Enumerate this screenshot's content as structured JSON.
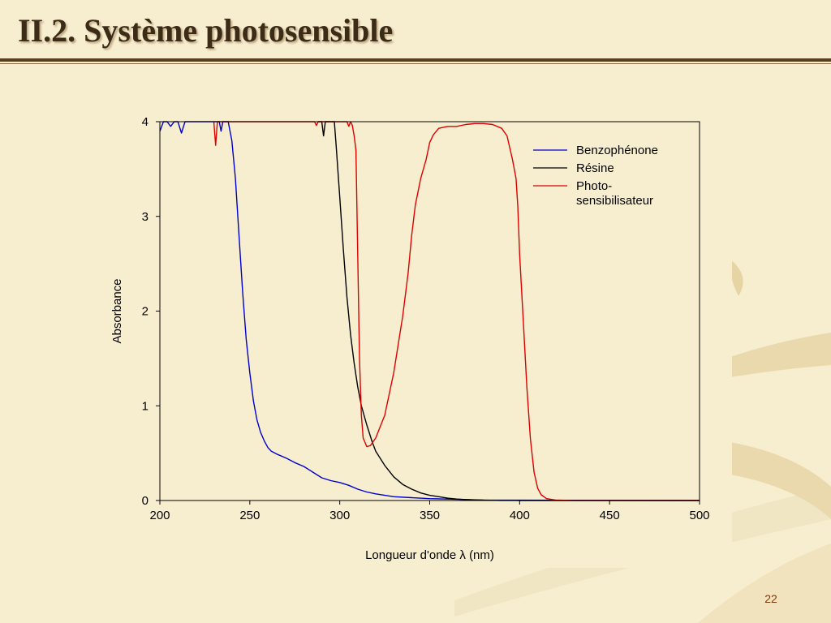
{
  "slide": {
    "title": "II.2. Système photosensible",
    "page_number": "22"
  },
  "colors": {
    "background": "#f7eed0",
    "title": "#3b2b17",
    "rule": "#5a3f1f",
    "page_number": "#7a3b10"
  },
  "chart_data": {
    "type": "line",
    "title": "",
    "xlabel": "Longueur d'onde λ (nm)",
    "ylabel": "Absorbance",
    "xlim": [
      200,
      500
    ],
    "ylim": [
      0,
      4
    ],
    "x_ticks": [
      200,
      250,
      300,
      350,
      400,
      450,
      500
    ],
    "y_ticks": [
      0,
      1,
      2,
      3,
      4
    ],
    "x_tick_labels": [
      "200",
      "250",
      "300",
      "350",
      "400",
      "450",
      "500"
    ],
    "y_tick_labels": [
      "0",
      "1",
      "2",
      "3",
      "4"
    ],
    "grid": false,
    "legend_position": "top-right",
    "legend_labels": [
      "Benzophénone",
      "Résine",
      "Photo-",
      "sensibilisateur"
    ],
    "series": [
      {
        "name": "Benzophénone",
        "color": "#0000cc",
        "points": [
          [
            200,
            3.9
          ],
          [
            202,
            4
          ],
          [
            204,
            4
          ],
          [
            206,
            3.95
          ],
          [
            208,
            4
          ],
          [
            210,
            4
          ],
          [
            212,
            3.88
          ],
          [
            214,
            4
          ],
          [
            216,
            4
          ],
          [
            220,
            4
          ],
          [
            225,
            4
          ],
          [
            230,
            4
          ],
          [
            233,
            4
          ],
          [
            234,
            3.9
          ],
          [
            235,
            4
          ],
          [
            236,
            4
          ],
          [
            238,
            4
          ],
          [
            240,
            3.8
          ],
          [
            242,
            3.4
          ],
          [
            244,
            2.8
          ],
          [
            246,
            2.2
          ],
          [
            248,
            1.7
          ],
          [
            250,
            1.35
          ],
          [
            252,
            1.05
          ],
          [
            254,
            0.85
          ],
          [
            256,
            0.72
          ],
          [
            258,
            0.63
          ],
          [
            260,
            0.56
          ],
          [
            262,
            0.52
          ],
          [
            265,
            0.49
          ],
          [
            270,
            0.45
          ],
          [
            275,
            0.4
          ],
          [
            280,
            0.36
          ],
          [
            285,
            0.3
          ],
          [
            290,
            0.24
          ],
          [
            295,
            0.21
          ],
          [
            300,
            0.19
          ],
          [
            305,
            0.16
          ],
          [
            310,
            0.12
          ],
          [
            315,
            0.09
          ],
          [
            320,
            0.07
          ],
          [
            330,
            0.04
          ],
          [
            340,
            0.03
          ],
          [
            350,
            0.02
          ],
          [
            360,
            0.015
          ],
          [
            370,
            0.01
          ],
          [
            380,
            0.005
          ],
          [
            400,
            0.003
          ],
          [
            450,
            0.002
          ],
          [
            500,
            0
          ]
        ]
      },
      {
        "name": "Résine",
        "color": "#000000",
        "points": [
          [
            288,
            4
          ],
          [
            290,
            4
          ],
          [
            291,
            3.85
          ],
          [
            292,
            4
          ],
          [
            295,
            4
          ],
          [
            297,
            4
          ],
          [
            298,
            3.75
          ],
          [
            300,
            3.2
          ],
          [
            302,
            2.65
          ],
          [
            304,
            2.15
          ],
          [
            306,
            1.75
          ],
          [
            308,
            1.45
          ],
          [
            310,
            1.2
          ],
          [
            312,
            1.0
          ],
          [
            315,
            0.8
          ],
          [
            318,
            0.62
          ],
          [
            320,
            0.52
          ],
          [
            325,
            0.37
          ],
          [
            330,
            0.25
          ],
          [
            335,
            0.17
          ],
          [
            340,
            0.12
          ],
          [
            345,
            0.08
          ],
          [
            350,
            0.055
          ],
          [
            355,
            0.04
          ],
          [
            360,
            0.025
          ],
          [
            365,
            0.015
          ],
          [
            370,
            0.01
          ],
          [
            375,
            0.006
          ],
          [
            380,
            0.003
          ],
          [
            390,
            0.001
          ],
          [
            400,
            0
          ],
          [
            500,
            0
          ]
        ]
      },
      {
        "name": "Photo-sensibilisateur",
        "color": "#dd0000",
        "points": [
          [
            230,
            4
          ],
          [
            231,
            3.75
          ],
          [
            232,
            4
          ],
          [
            233,
            4
          ],
          [
            286,
            4
          ],
          [
            287,
            3.96
          ],
          [
            288,
            4
          ],
          [
            304,
            4
          ],
          [
            305,
            3.95
          ],
          [
            306,
            4
          ],
          [
            307,
            3.96
          ],
          [
            308,
            3.85
          ],
          [
            309,
            3.7
          ],
          [
            310,
            2.6
          ],
          [
            311,
            1.5
          ],
          [
            312,
            0.9
          ],
          [
            313,
            0.66
          ],
          [
            315,
            0.57
          ],
          [
            317,
            0.58
          ],
          [
            320,
            0.66
          ],
          [
            325,
            0.9
          ],
          [
            330,
            1.35
          ],
          [
            335,
            1.95
          ],
          [
            338,
            2.4
          ],
          [
            340,
            2.8
          ],
          [
            342,
            3.12
          ],
          [
            345,
            3.4
          ],
          [
            348,
            3.6
          ],
          [
            350,
            3.78
          ],
          [
            352,
            3.86
          ],
          [
            355,
            3.93
          ],
          [
            360,
            3.95
          ],
          [
            365,
            3.95
          ],
          [
            370,
            3.97
          ],
          [
            375,
            3.98
          ],
          [
            380,
            3.98
          ],
          [
            385,
            3.97
          ],
          [
            390,
            3.93
          ],
          [
            393,
            3.85
          ],
          [
            396,
            3.6
          ],
          [
            398,
            3.4
          ],
          [
            399,
            3.1
          ],
          [
            400,
            2.6
          ],
          [
            402,
            1.9
          ],
          [
            404,
            1.2
          ],
          [
            406,
            0.65
          ],
          [
            408,
            0.3
          ],
          [
            410,
            0.13
          ],
          [
            412,
            0.06
          ],
          [
            415,
            0.02
          ],
          [
            420,
            0.005
          ],
          [
            430,
            0.001
          ],
          [
            450,
            0
          ],
          [
            500,
            0
          ]
        ]
      }
    ]
  }
}
